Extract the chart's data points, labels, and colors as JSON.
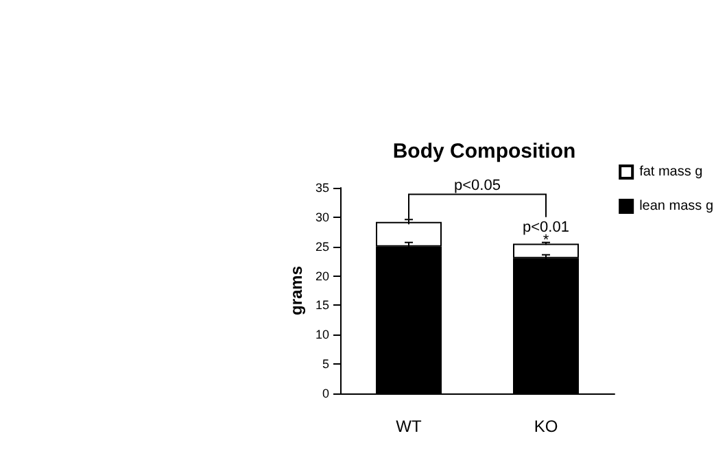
{
  "chart_data": {
    "type": "bar",
    "title": "Body Composition",
    "ylabel": "grams",
    "categories": [
      "WT",
      "KO"
    ],
    "stacked": true,
    "series": [
      {
        "name": "lean mass g",
        "color": "#000000",
        "values": [
          25,
          23
        ],
        "errors": [
          0.7,
          0.6
        ]
      },
      {
        "name": "fat mass g",
        "color": "#ffffff",
        "values": [
          4.2,
          2.5
        ],
        "errors": [
          0.4,
          0.2
        ]
      }
    ],
    "ylim": [
      0,
      35
    ],
    "yticks": [
      0,
      5,
      10,
      15,
      20,
      25,
      30,
      35
    ],
    "grid": false,
    "legend": "top right",
    "annotations": [
      "p<0.05",
      "p<0.01",
      {
        "text": "*",
        "x": "KO",
        "y": 26.3
      }
    ]
  }
}
